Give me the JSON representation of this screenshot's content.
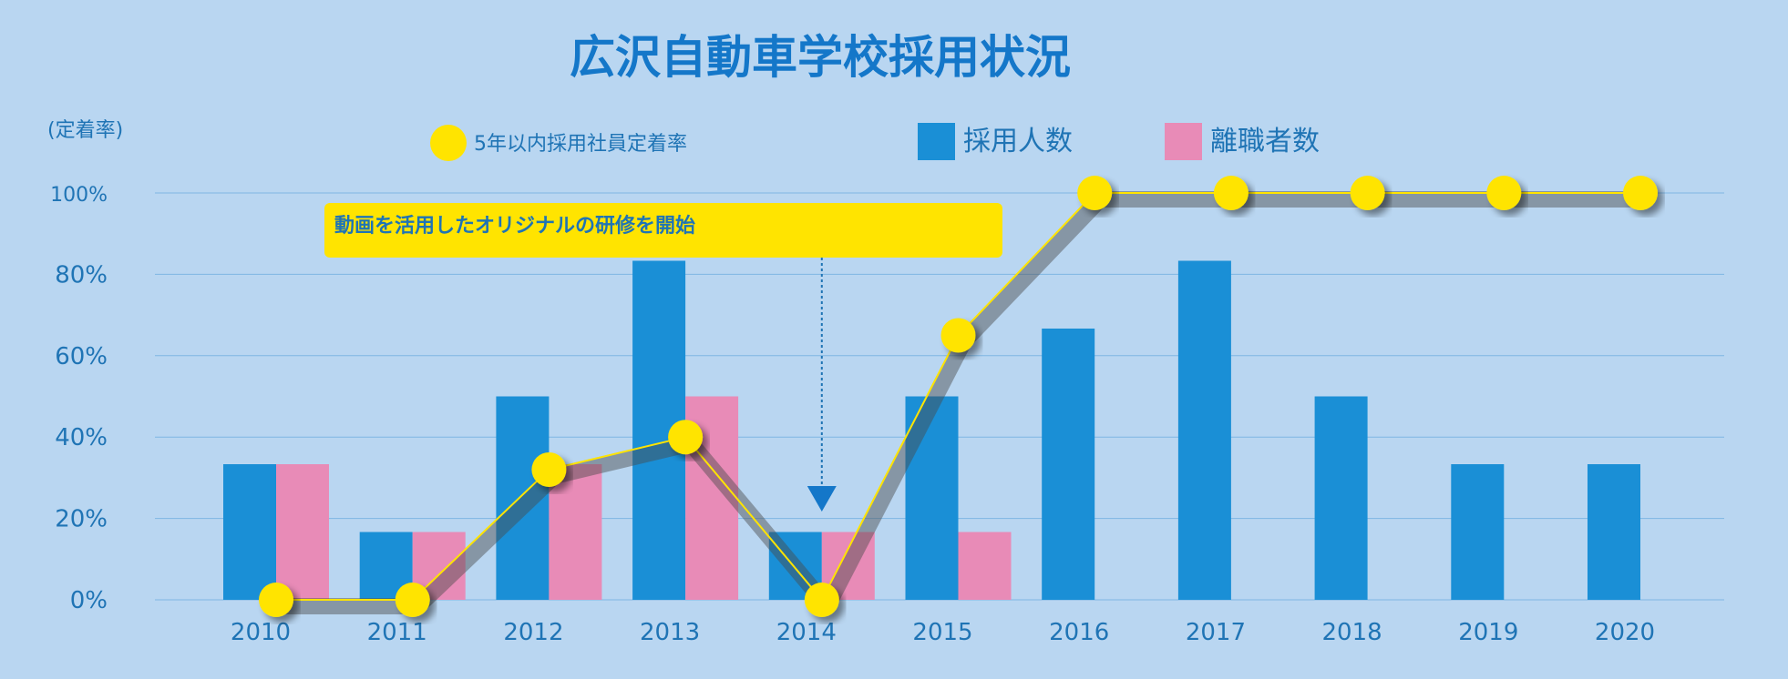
{
  "chart_data": {
    "type": "bar",
    "title": "広沢自動車学校採用状況",
    "y_unit_label": "(定着率)",
    "categories": [
      "2010",
      "2011",
      "2012",
      "2013",
      "2014",
      "2015",
      "2016",
      "2017",
      "2018",
      "2019",
      "2020"
    ],
    "ylim": [
      0,
      100
    ],
    "yticks": [
      "0%",
      "20%",
      "40%",
      "60%",
      "80%",
      "100%"
    ],
    "grid": true,
    "bar_scale_max": 6,
    "series": [
      {
        "name": "採用人数",
        "type": "bar",
        "color": "#1a8fd6",
        "values": [
          2,
          1,
          3,
          5,
          1,
          3,
          4,
          5,
          3,
          2,
          2
        ]
      },
      {
        "name": "離職者数",
        "type": "bar",
        "color": "#e88bb7",
        "values": [
          2,
          1,
          2,
          3,
          1,
          1,
          0,
          0,
          0,
          0,
          0
        ]
      },
      {
        "name": "5年以内採用社員定着率",
        "type": "line",
        "color": "#ffe400",
        "values": [
          0,
          0,
          32,
          40,
          0,
          65,
          100,
          100,
          100,
          100,
          100
        ]
      }
    ],
    "annotation": {
      "text": "動画を活用したオリジナルの研修を開始",
      "category": "2014"
    },
    "legend_placement": "top"
  }
}
